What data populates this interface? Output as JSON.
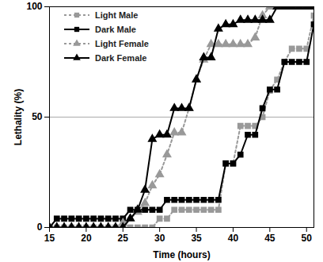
{
  "chart_data": {
    "type": "line",
    "x_label": "Time (hours)",
    "y_label": "Lethality (%)",
    "x": [
      15,
      16,
      17,
      18,
      19,
      20,
      21,
      22,
      23,
      24,
      25,
      26,
      27,
      28,
      29,
      30,
      31,
      32,
      33,
      34,
      35,
      36,
      37,
      38,
      39,
      40,
      41,
      42,
      43,
      44,
      45,
      46,
      47,
      48,
      49,
      50,
      51
    ],
    "series": [
      {
        "name": "Light Male",
        "color": "#999999",
        "marker": "square",
        "line_style": "dashed",
        "values": [
          0,
          0,
          0,
          0,
          0,
          0,
          0,
          0,
          0,
          0,
          0,
          0,
          0,
          0,
          0,
          4,
          4,
          8,
          8,
          8,
          8,
          8,
          8,
          8,
          29,
          29,
          46,
          46,
          46,
          50,
          62,
          67,
          75,
          81,
          81,
          81,
          96
        ]
      },
      {
        "name": "Dark Male",
        "color": "#000000",
        "marker": "square",
        "line_style": "solid",
        "values": [
          0,
          4,
          4,
          4,
          4,
          4,
          4,
          4,
          4,
          4,
          4,
          8,
          8,
          8,
          8,
          8,
          12.5,
          12.5,
          12.5,
          12.5,
          12.5,
          12.5,
          12.5,
          12.5,
          29,
          29,
          33,
          42,
          42,
          54,
          62.5,
          62.5,
          75,
          75,
          75,
          75,
          92
        ]
      },
      {
        "name": "Light Female",
        "color": "#999999",
        "marker": "triangle",
        "line_style": "dashed",
        "values": [
          0,
          0,
          0,
          0,
          0,
          0,
          0,
          0,
          0,
          0,
          2,
          4,
          7,
          11,
          19,
          24,
          33,
          43,
          43,
          54,
          67,
          76,
          83,
          83,
          83,
          83,
          83,
          83,
          86,
          96,
          100,
          100,
          100,
          100,
          100,
          100,
          100
        ]
      },
      {
        "name": "Dark Female",
        "color": "#000000",
        "marker": "triangle",
        "line_style": "solid",
        "values": [
          0,
          0,
          0,
          0,
          0,
          0,
          0,
          0,
          0,
          0,
          0,
          4,
          8,
          17,
          40,
          42,
          42,
          54,
          54,
          54,
          67,
          77,
          77,
          90,
          92,
          92,
          94,
          94,
          94,
          94,
          94,
          100,
          100,
          100,
          100,
          100,
          100
        ]
      }
    ],
    "xlim": [
      15,
      51
    ],
    "ylim": [
      0,
      100
    ],
    "xticks": [
      15,
      20,
      25,
      30,
      35,
      40,
      45,
      50
    ],
    "yticks": [
      0,
      50,
      100
    ],
    "grid": true,
    "legend": "top-left"
  }
}
